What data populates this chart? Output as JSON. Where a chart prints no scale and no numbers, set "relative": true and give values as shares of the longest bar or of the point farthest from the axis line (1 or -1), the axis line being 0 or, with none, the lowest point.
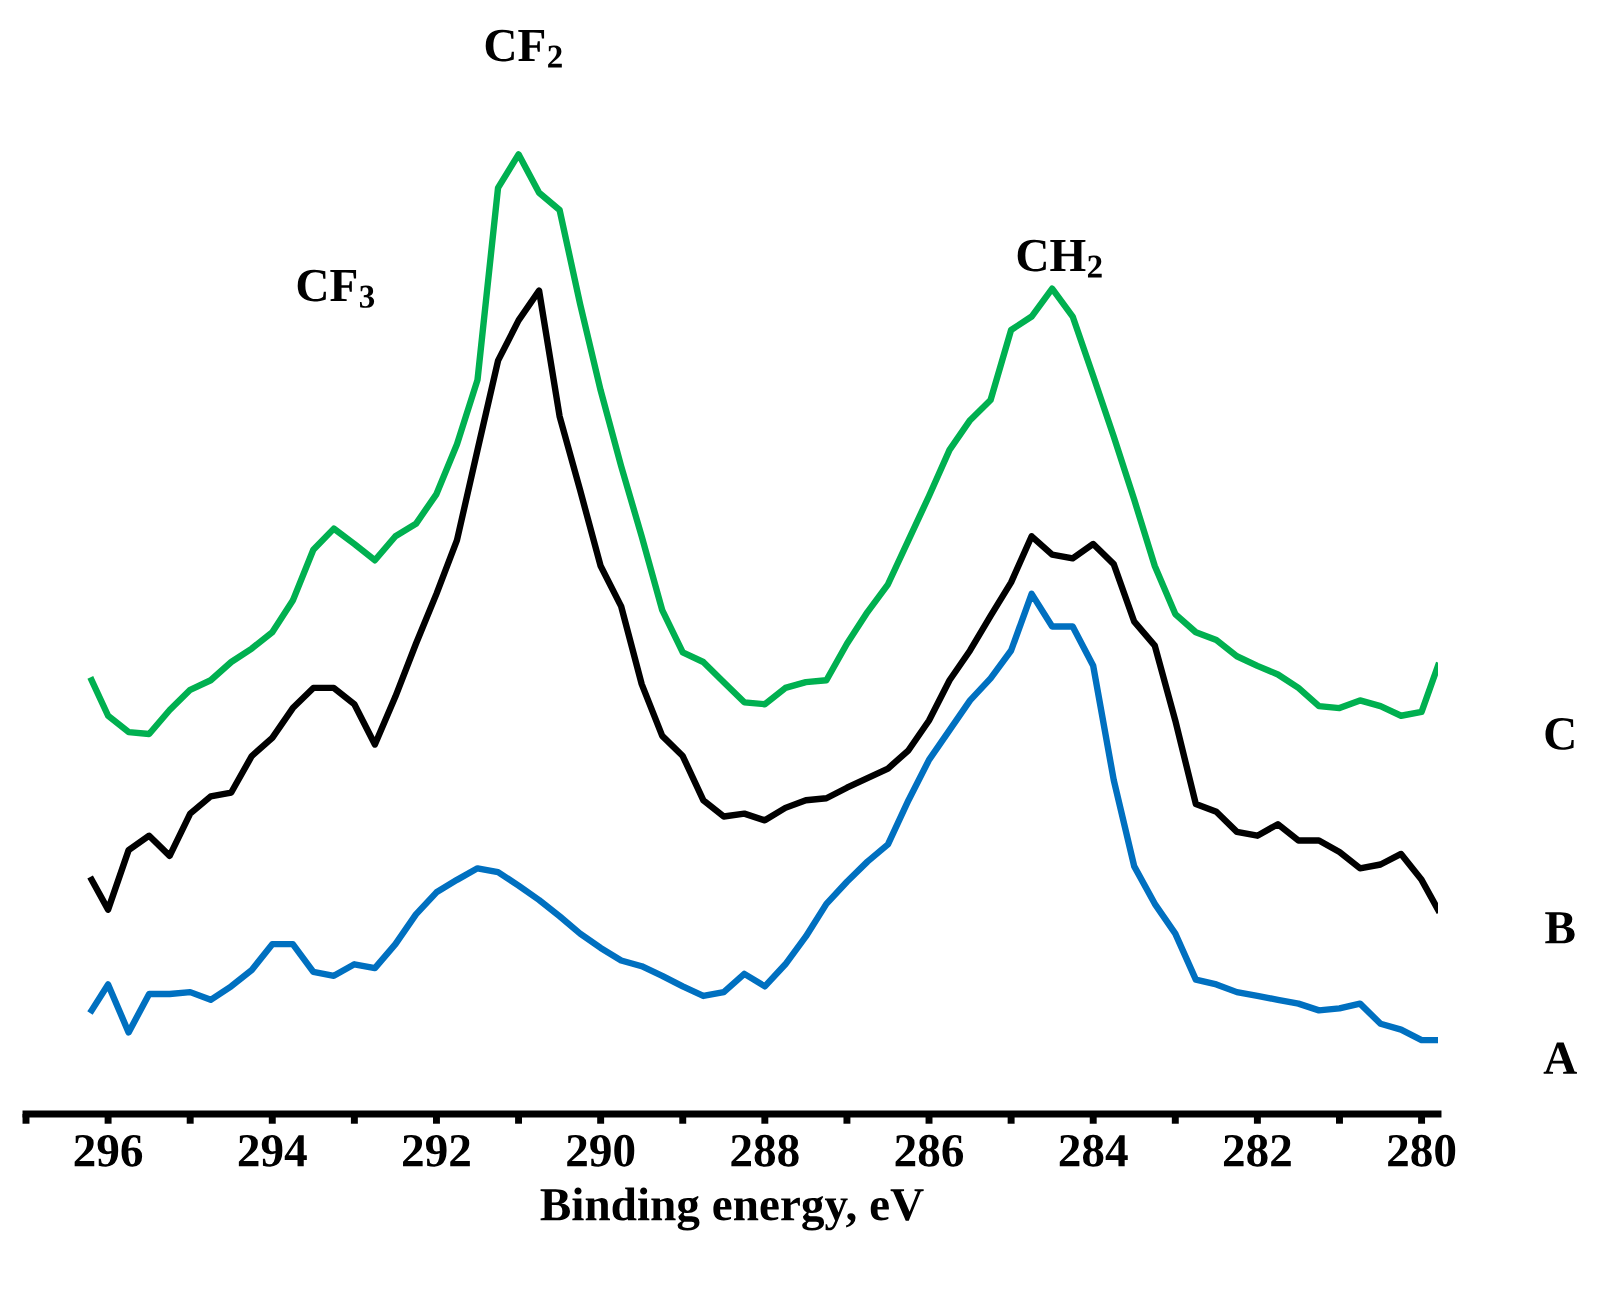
{
  "chart_data": {
    "type": "line",
    "relative": true,
    "xlabel": "Binding energy, eV",
    "x": [
      296.2,
      296.0,
      295.75,
      295.5,
      295.25,
      295.0,
      294.75,
      294.5,
      294.25,
      294.0,
      293.75,
      293.5,
      293.25,
      293.0,
      292.75,
      292.5,
      292.25,
      292.0,
      291.75,
      291.5,
      291.25,
      291.0,
      290.75,
      290.5,
      290.25,
      290.0,
      289.75,
      289.5,
      289.25,
      289.0,
      288.75,
      288.5,
      288.25,
      288.0,
      287.75,
      287.5,
      287.25,
      287.0,
      286.75,
      286.5,
      286.25,
      286.0,
      285.75,
      285.5,
      285.25,
      285.0,
      284.75,
      284.5,
      284.25,
      284.0,
      283.75,
      283.5,
      283.25,
      283.0,
      282.75,
      282.5,
      282.25,
      282.0,
      281.75,
      281.5,
      281.25,
      281.0,
      280.75,
      280.5,
      280.25,
      280.0,
      279.8
    ],
    "xlim": [
      297,
      279.8
    ],
    "xticks": [
      {
        "value": 297,
        "label": null
      },
      296,
      {
        "value": 295,
        "label": null
      },
      294,
      {
        "value": 293,
        "label": null
      },
      292,
      {
        "value": 291,
        "label": null
      },
      290,
      {
        "value": 289,
        "label": null
      },
      288,
      {
        "value": 287,
        "label": null
      },
      286,
      {
        "value": 285,
        "label": null
      },
      284,
      {
        "value": 283,
        "label": null
      },
      282,
      {
        "value": 281,
        "label": null
      },
      280
    ],
    "tick_labels": "x",
    "grid": false,
    "legend": false,
    "marker": "none",
    "line_style": "solid",
    "series": [
      {
        "name": "C",
        "color": "#00b050",
        "values": [
          0.452,
          0.415,
          0.398,
          0.396,
          0.421,
          0.442,
          0.452,
          0.471,
          0.485,
          0.502,
          0.535,
          0.588,
          0.61,
          0.594,
          0.577,
          0.602,
          0.615,
          0.646,
          0.698,
          0.765,
          0.965,
          1.0,
          0.96,
          0.942,
          0.844,
          0.754,
          0.675,
          0.602,
          0.525,
          0.481,
          0.471,
          0.45,
          0.429,
          0.427,
          0.444,
          0.45,
          0.452,
          0.49,
          0.523,
          0.552,
          0.598,
          0.644,
          0.692,
          0.723,
          0.744,
          0.817,
          0.831,
          0.86,
          0.831,
          0.769,
          0.706,
          0.64,
          0.571,
          0.521,
          0.502,
          0.494,
          0.477,
          0.467,
          0.458,
          0.444,
          0.425,
          0.423,
          0.431,
          0.425,
          0.415,
          0.419,
          0.467
        ]
      },
      {
        "name": "B",
        "color": "#000000",
        "values": [
          0.244,
          0.213,
          0.275,
          0.29,
          0.269,
          0.313,
          0.331,
          0.335,
          0.373,
          0.392,
          0.423,
          0.444,
          0.444,
          0.427,
          0.385,
          0.435,
          0.49,
          0.542,
          0.598,
          0.692,
          0.785,
          0.827,
          0.858,
          0.727,
          0.65,
          0.571,
          0.529,
          0.448,
          0.394,
          0.373,
          0.327,
          0.31,
          0.313,
          0.306,
          0.319,
          0.327,
          0.329,
          0.34,
          0.35,
          0.36,
          0.379,
          0.41,
          0.452,
          0.483,
          0.519,
          0.554,
          0.602,
          0.583,
          0.579,
          0.594,
          0.573,
          0.513,
          0.488,
          0.41,
          0.323,
          0.315,
          0.294,
          0.29,
          0.302,
          0.285,
          0.285,
          0.273,
          0.256,
          0.26,
          0.271,
          0.244,
          0.213
        ]
      },
      {
        "name": "A",
        "color": "#0070c0",
        "values": [
          0.108,
          0.135,
          0.085,
          0.125,
          0.125,
          0.127,
          0.119,
          0.133,
          0.15,
          0.177,
          0.177,
          0.148,
          0.144,
          0.156,
          0.152,
          0.177,
          0.208,
          0.231,
          0.244,
          0.256,
          0.252,
          0.238,
          0.223,
          0.206,
          0.188,
          0.173,
          0.16,
          0.154,
          0.144,
          0.133,
          0.123,
          0.127,
          0.146,
          0.133,
          0.156,
          0.185,
          0.219,
          0.242,
          0.263,
          0.281,
          0.327,
          0.369,
          0.4,
          0.431,
          0.454,
          0.483,
          0.542,
          0.508,
          0.508,
          0.467,
          0.348,
          0.258,
          0.219,
          0.188,
          0.14,
          0.135,
          0.127,
          0.123,
          0.119,
          0.115,
          0.108,
          0.11,
          0.115,
          0.094,
          0.088,
          0.077,
          0.077
        ]
      }
    ],
    "annotations": [
      "CF$_{2}$",
      "CF$_{3}$",
      "CH$_{2}$"
    ]
  }
}
